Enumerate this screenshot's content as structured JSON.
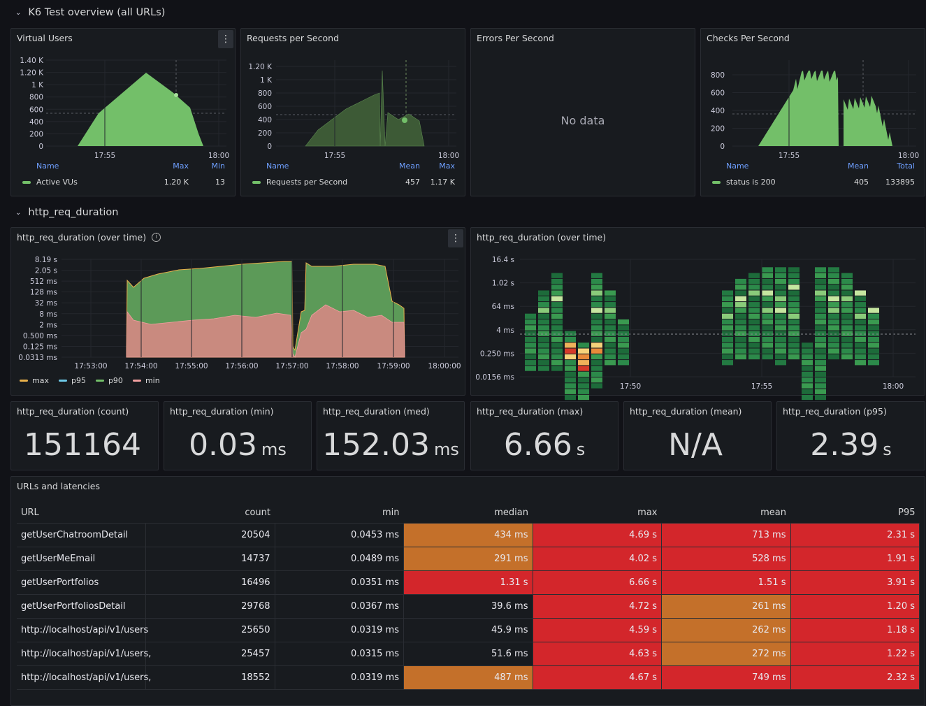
{
  "rows": {
    "overview": "K6 Test overview (all URLs)",
    "duration": "http_req_duration"
  },
  "panels": {
    "vus": {
      "title": "Virtual Users",
      "y_ticks": [
        "1.40 K",
        "1.20 K",
        "1 K",
        "800",
        "600",
        "400",
        "200",
        "0"
      ],
      "x_ticks": [
        "17:55",
        "18:00"
      ],
      "legend": {
        "cols": [
          "Name",
          "Max",
          "Min"
        ],
        "row": [
          "Active VUs",
          "1.20 K",
          "13"
        ]
      }
    },
    "rps": {
      "title": "Requests per Second",
      "y_ticks": [
        "1.20 K",
        "1 K",
        "800",
        "600",
        "400",
        "200",
        "0"
      ],
      "x_ticks": [
        "17:55",
        "18:00"
      ],
      "legend": {
        "cols": [
          "Name",
          "Mean",
          "Max"
        ],
        "row": [
          "Requests per Second",
          "457",
          "1.17 K"
        ]
      }
    },
    "eps": {
      "title": "Errors Per Second",
      "no_data": "No data"
    },
    "cps": {
      "title": "Checks Per Second",
      "y_ticks": [
        "800",
        "600",
        "400",
        "200",
        "0"
      ],
      "x_ticks": [
        "17:55",
        "18:00"
      ],
      "legend": {
        "cols": [
          "Name",
          "Mean",
          "Total"
        ],
        "row": [
          "status is 200",
          "405",
          "133895"
        ]
      }
    },
    "dur_time": {
      "title": "http_req_duration (over time)",
      "y_ticks": [
        "8.19 s",
        "2.05 s",
        "512 ms",
        "128 ms",
        "32 ms",
        "8 ms",
        "2 ms",
        "0.500 ms",
        "0.125 ms",
        "0.0313 ms"
      ],
      "x_ticks": [
        "17:53:00",
        "17:54:00",
        "17:55:00",
        "17:56:00",
        "17:57:00",
        "17:58:00",
        "17:59:00",
        "18:00:00"
      ],
      "legend": [
        {
          "name": "max",
          "color": "#e8b04b"
        },
        {
          "name": "p95",
          "color": "#6ec9e8"
        },
        {
          "name": "p90",
          "color": "#73bf69"
        },
        {
          "name": "min",
          "color": "#f2a0a0"
        }
      ]
    },
    "dur_heat": {
      "title": "http_req_duration (over time)",
      "y_ticks": [
        "16.4 s",
        "1.02 s",
        "64 ms",
        "4 ms",
        "0.250 ms",
        "0.0156 ms"
      ],
      "x_ticks": [
        "17:50",
        "17:55",
        "18:00"
      ]
    }
  },
  "stats": [
    {
      "title": "http_req_duration (count)",
      "value": "151164",
      "unit": ""
    },
    {
      "title": "http_req_duration (min)",
      "value": "0.03",
      "unit": "ms"
    },
    {
      "title": "http_req_duration (med)",
      "value": "152.03",
      "unit": "ms"
    },
    {
      "title": "http_req_duration (max)",
      "value": "6.66",
      "unit": "s"
    },
    {
      "title": "http_req_duration (mean)",
      "value": "N/A",
      "unit": ""
    },
    {
      "title": "http_req_duration (p95)",
      "value": "2.39",
      "unit": "s"
    }
  ],
  "table": {
    "title": "URLs and latencies",
    "headers": [
      "URL",
      "count",
      "min",
      "median",
      "max",
      "mean",
      "P95"
    ],
    "rows": [
      [
        "getUserChatroomDetail",
        "20504",
        "0.0453 ms",
        "434 ms",
        "4.69 s",
        "713 ms",
        "2.31 s"
      ],
      [
        "getUserMeEmail",
        "14737",
        "0.0489 ms",
        "291 ms",
        "4.02 s",
        "528 ms",
        "1.91 s"
      ],
      [
        "getUserPortfolios",
        "16496",
        "0.0351 ms",
        "1.31 s",
        "6.66 s",
        "1.51 s",
        "3.91 s"
      ],
      [
        "getUserPortfoliosDetail",
        "29768",
        "0.0367 ms",
        "39.6 ms",
        "4.72 s",
        "261 ms",
        "1.20 s"
      ],
      [
        "http://localhost/api/v1/users",
        "25650",
        "0.0319 ms",
        "45.9 ms",
        "4.59 s",
        "262 ms",
        "1.18 s"
      ],
      [
        "http://localhost/api/v1/users,",
        "25457",
        "0.0315 ms",
        "51.6 ms",
        "4.63 s",
        "272 ms",
        "1.22 s"
      ],
      [
        "http://localhost/api/v1/users,",
        "18552",
        "0.0319 ms",
        "487 ms",
        "4.67 s",
        "749 ms",
        "2.32 s"
      ]
    ],
    "cell_colors": [
      [
        "",
        "",
        "",
        "orange",
        "red",
        "red",
        "red"
      ],
      [
        "",
        "",
        "",
        "orange",
        "red",
        "red",
        "red"
      ],
      [
        "",
        "",
        "",
        "red",
        "red",
        "red",
        "red"
      ],
      [
        "",
        "",
        "",
        "",
        "red",
        "orange",
        "red"
      ],
      [
        "",
        "",
        "",
        "",
        "red",
        "orange",
        "red"
      ],
      [
        "",
        "",
        "",
        "",
        "red",
        "orange",
        "red"
      ],
      [
        "",
        "",
        "",
        "orange",
        "red",
        "red",
        "red"
      ]
    ]
  },
  "colors": {
    "green": "#73bf69",
    "orange": "#c4702a",
    "red": "#d3262b",
    "bg": "#111217",
    "panel": "#181b1f"
  }
}
